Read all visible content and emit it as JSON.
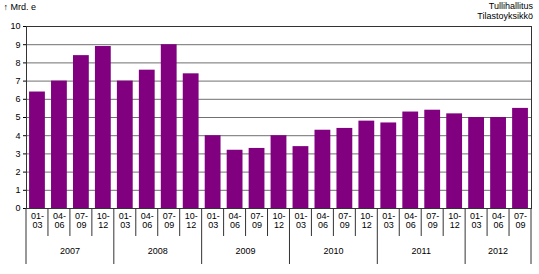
{
  "chart_data": {
    "type": "bar",
    "source": [
      "Tullihallitus",
      "Tilastoyksikkö"
    ],
    "y_label": "Mrd. e",
    "categories": [
      "01-03",
      "04-06",
      "07-09",
      "10-12",
      "01-03",
      "04-06",
      "07-09",
      "10-12",
      "01-03",
      "04-06",
      "07-09",
      "10-12",
      "01-03",
      "04-06",
      "07-09",
      "10-12",
      "01-03",
      "04-06",
      "07-09",
      "10-12",
      "01-03",
      "04-06",
      "07-09"
    ],
    "groups": [
      "2007",
      "2007",
      "2007",
      "2007",
      "2008",
      "2008",
      "2008",
      "2008",
      "2009",
      "2009",
      "2009",
      "2009",
      "2010",
      "2010",
      "2010",
      "2010",
      "2011",
      "2011",
      "2011",
      "2011",
      "2012",
      "2012",
      "2012"
    ],
    "values": [
      6.4,
      7.0,
      8.4,
      8.9,
      7.0,
      7.6,
      9.0,
      7.4,
      4.0,
      3.2,
      3.3,
      4.0,
      3.4,
      4.3,
      4.4,
      4.8,
      4.7,
      5.3,
      5.4,
      5.2,
      5.0,
      5.0,
      5.5
    ],
    "color": "#800080",
    "ylim": [
      0,
      10
    ],
    "yticks": [
      0,
      1,
      2,
      3,
      4,
      5,
      6,
      7,
      8,
      9,
      10
    ],
    "grid": true
  }
}
